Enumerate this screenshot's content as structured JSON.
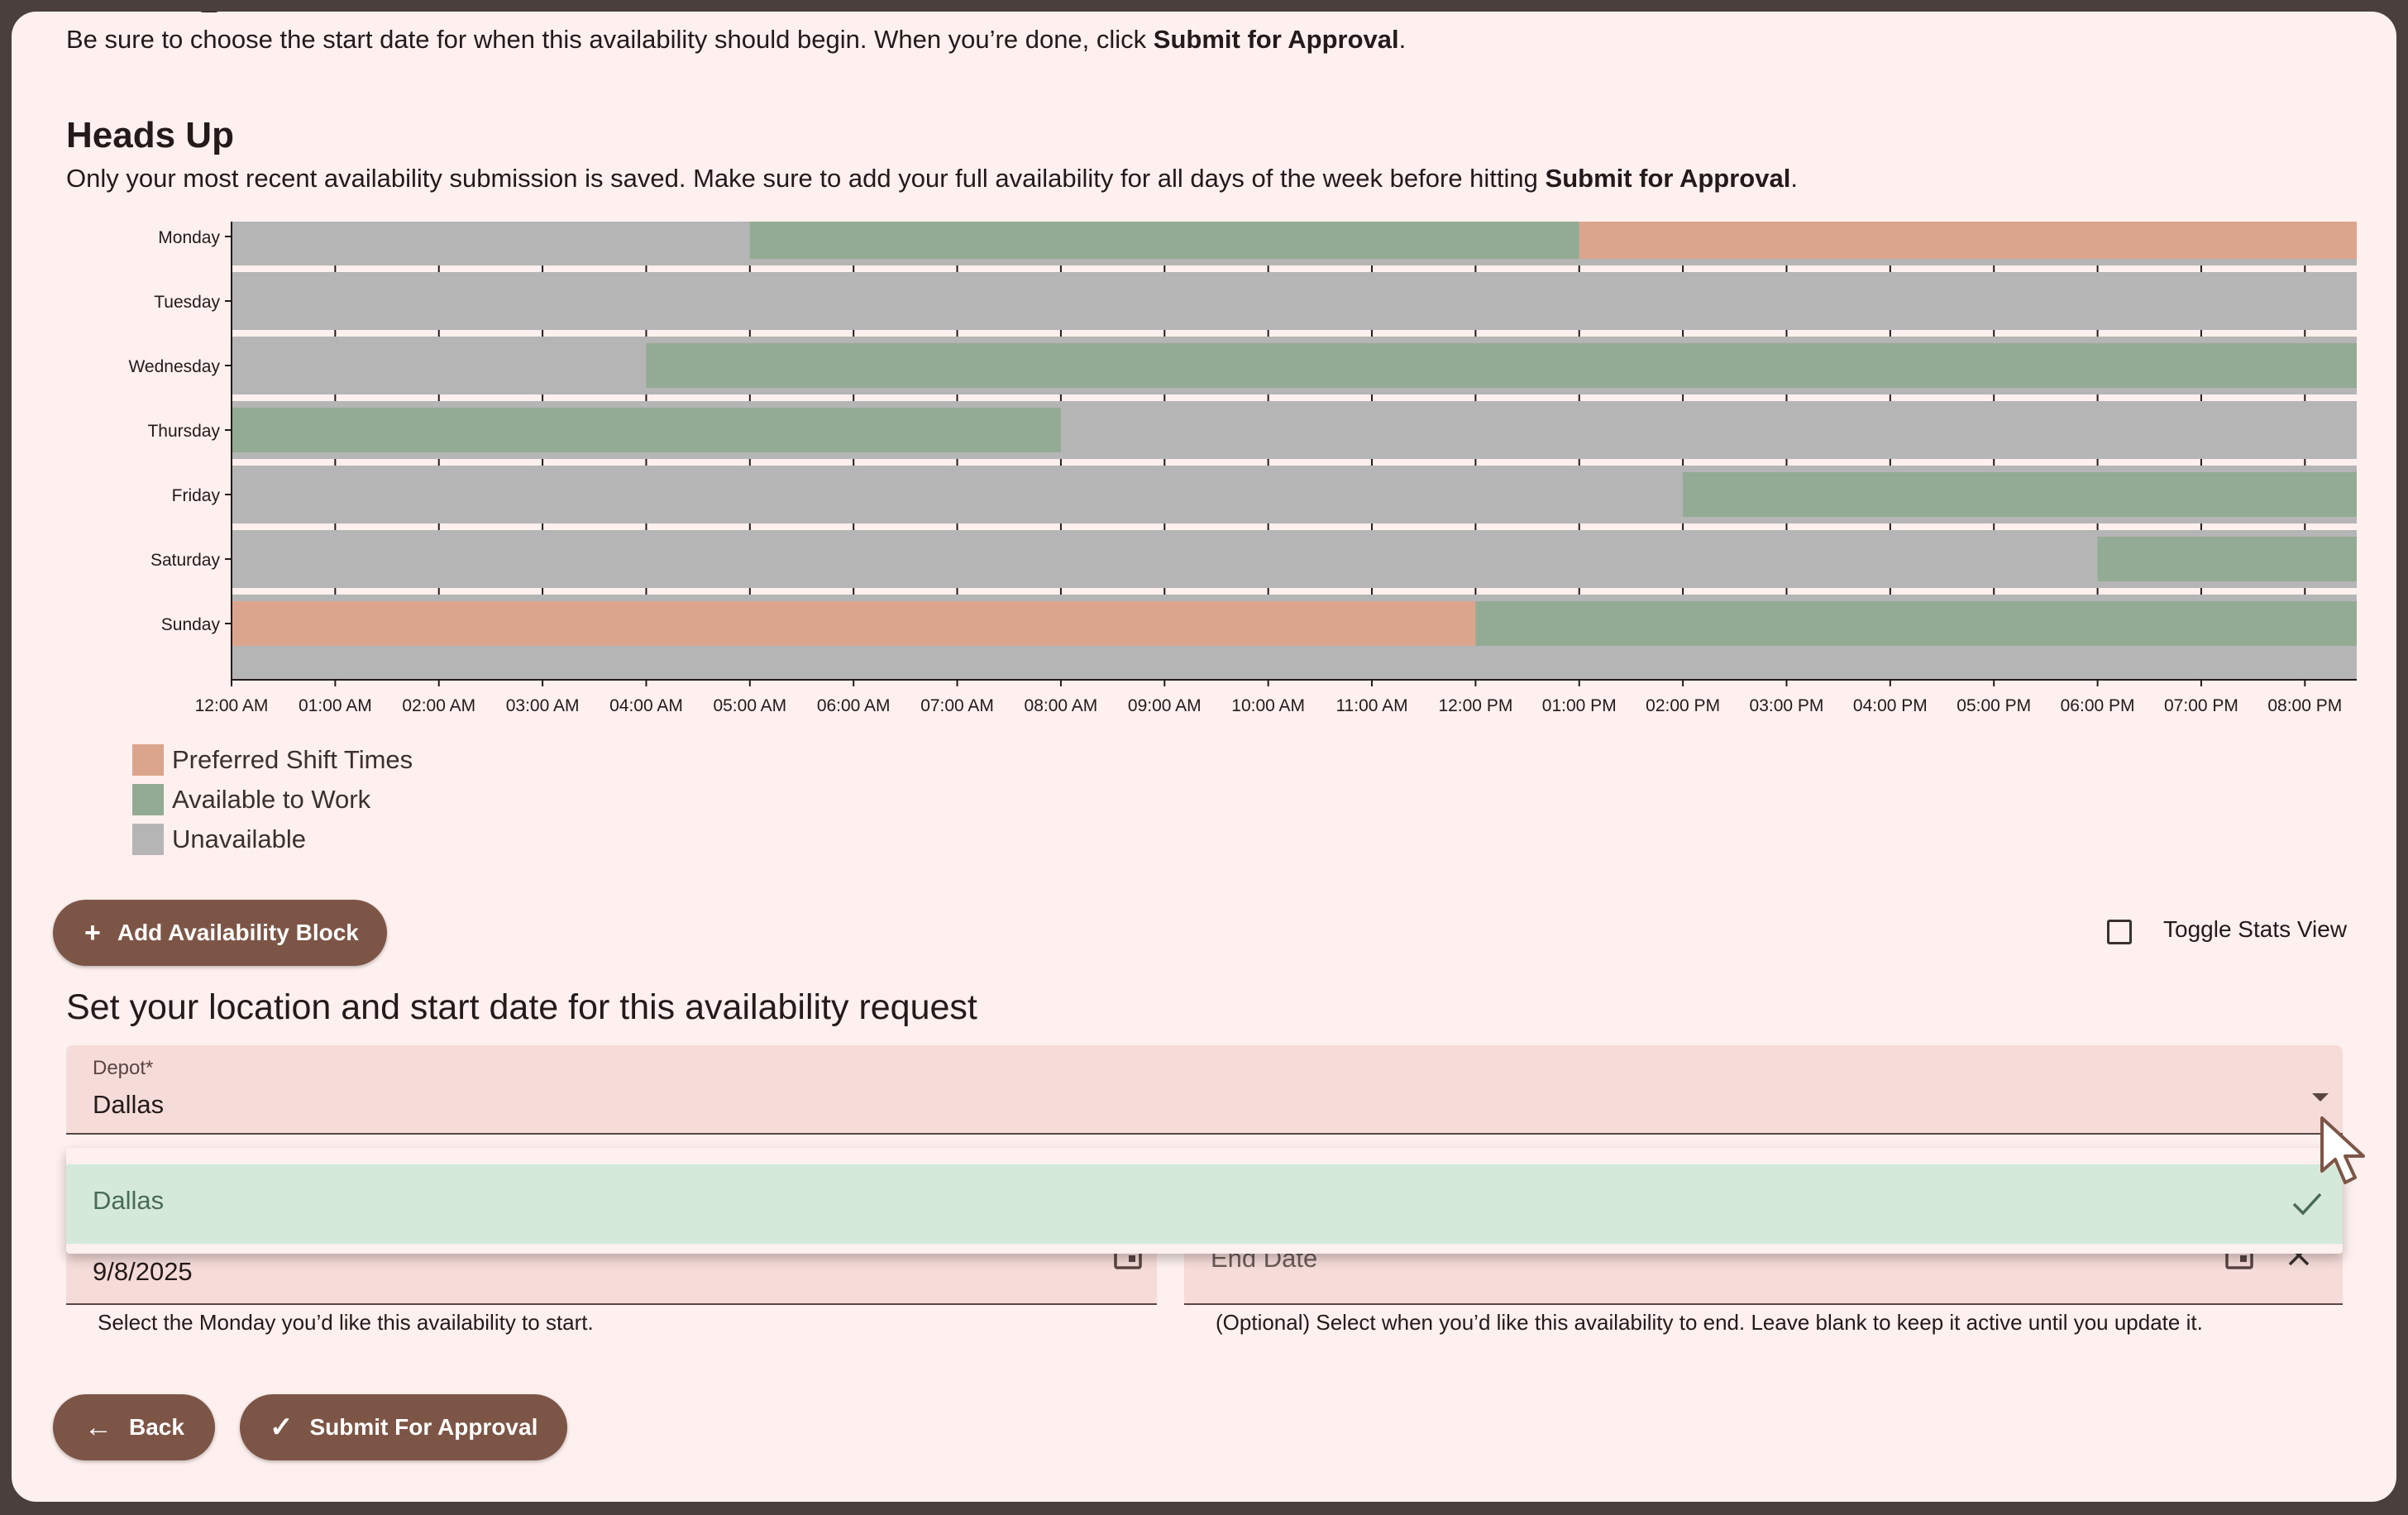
{
  "intro": {
    "text_before": "Be sure to choose the start date for when this availability should begin. When you’re done, click ",
    "text_bold": "Submit for Approval",
    "text_after": "."
  },
  "heads_up": {
    "title": "Heads Up",
    "text_before": "Only your most recent availability submission is saved. Make sure to add your full availability for all days of the week before hitting ",
    "text_bold": "Submit for Approval",
    "text_after": "."
  },
  "chart_data": {
    "type": "bar",
    "orientation": "horizontal-timeline",
    "categories": [
      "Monday",
      "Tuesday",
      "Wednesday",
      "Thursday",
      "Friday",
      "Saturday",
      "Sunday"
    ],
    "x_tick_labels": [
      "12:00 AM",
      "01:00 AM",
      "02:00 AM",
      "03:00 AM",
      "04:00 AM",
      "05:00 AM",
      "06:00 AM",
      "07:00 AM",
      "08:00 AM",
      "09:00 AM",
      "10:00 AM",
      "11:00 AM",
      "12:00 PM",
      "01:00 PM",
      "02:00 PM",
      "03:00 PM",
      "04:00 PM",
      "05:00 PM",
      "06:00 PM",
      "07:00 PM",
      "08:00 PM"
    ],
    "x_range_hours": [
      0,
      20.5
    ],
    "colors": {
      "Preferred Shift Times": "#dba58d",
      "Available to Work": "#93ab94",
      "Unavailable": "#b5b5b5"
    },
    "segments": {
      "Monday": [
        {
          "start": 0,
          "end": 5,
          "status": "Unavailable"
        },
        {
          "start": 5,
          "end": 13,
          "status": "Available to Work"
        },
        {
          "start": 13,
          "end": 20.5,
          "status": "Preferred Shift Times"
        }
      ],
      "Tuesday": [
        {
          "start": 0,
          "end": 20.5,
          "status": "Unavailable"
        }
      ],
      "Wednesday": [
        {
          "start": 0,
          "end": 4,
          "status": "Unavailable"
        },
        {
          "start": 4,
          "end": 20.5,
          "status": "Available to Work"
        }
      ],
      "Thursday": [
        {
          "start": 0,
          "end": 8,
          "status": "Available to Work"
        },
        {
          "start": 8,
          "end": 20.5,
          "status": "Unavailable"
        }
      ],
      "Friday": [
        {
          "start": 0,
          "end": 14,
          "status": "Unavailable"
        },
        {
          "start": 14,
          "end": 20.5,
          "status": "Available to Work"
        }
      ],
      "Saturday": [
        {
          "start": 0,
          "end": 18,
          "status": "Unavailable"
        },
        {
          "start": 18,
          "end": 20.5,
          "status": "Available to Work"
        }
      ],
      "Sunday": [
        {
          "start": 0,
          "end": 12,
          "status": "Preferred Shift Times"
        },
        {
          "start": 12,
          "end": 20.5,
          "status": "Available to Work"
        }
      ]
    },
    "legend": [
      "Preferred Shift Times",
      "Available to Work",
      "Unavailable"
    ]
  },
  "actions": {
    "add_block_label": "Add Availability Block",
    "toggle_stats_label": "Toggle Stats View",
    "back_label": "Back",
    "submit_label": "Submit For Approval"
  },
  "location_section": {
    "title": "Set your location and start date for this availability request",
    "depot": {
      "label": "Depot*",
      "value": "Dallas",
      "options": [
        "Dallas"
      ],
      "selected_option": "Dallas"
    },
    "start_date": {
      "value": "9/8/2025",
      "helper": "Select the Monday you’d like this availability to start."
    },
    "end_date": {
      "placeholder": "End Date",
      "helper": "(Optional) Select when you’d like this availability to end. Leave blank to keep it active until you update it."
    }
  },
  "icons": {
    "add": "plus-icon",
    "back": "arrow-left-icon",
    "submit": "check-icon",
    "dropdown": "triangle-down-icon",
    "calendar": "calendar-icon",
    "clear": "close-icon",
    "selected": "check-icon",
    "cursor": "mouse-pointer-icon"
  }
}
